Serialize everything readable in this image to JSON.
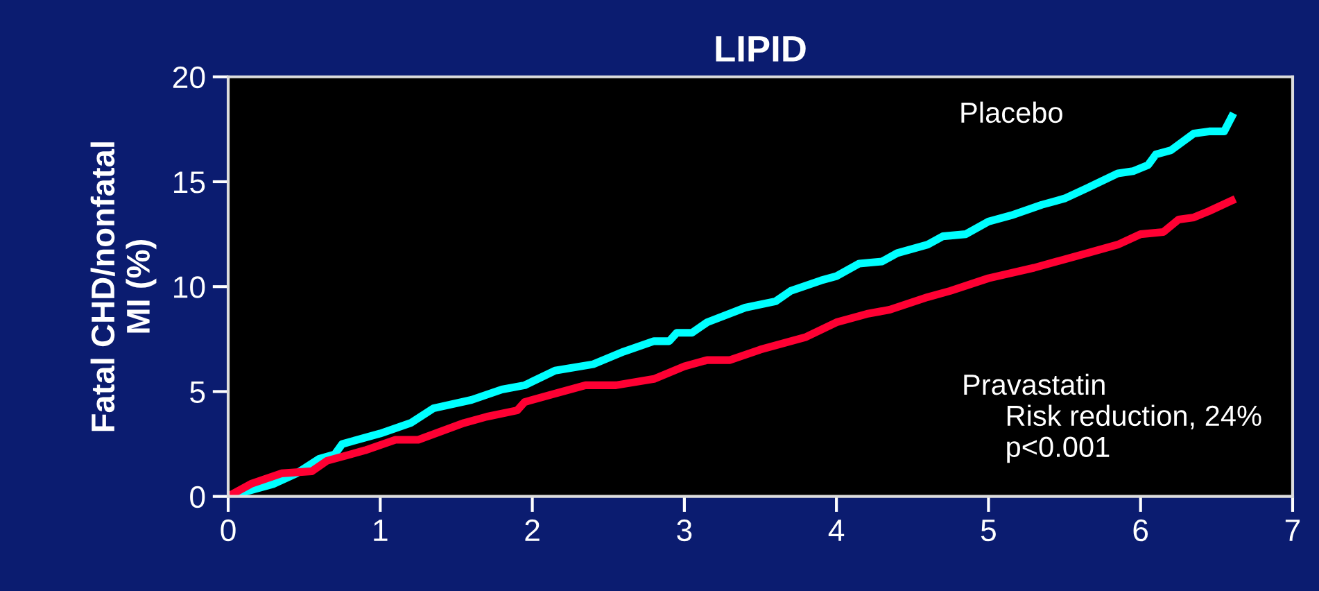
{
  "chart_data": {
    "type": "line",
    "title": "LIPID",
    "ylabel": "Fatal CHD/nonfatal\nMI (%)",
    "xlim": [
      0,
      7
    ],
    "xticks": [
      0,
      1,
      2,
      3,
      4,
      5,
      6,
      7
    ],
    "ylim": [
      0,
      20
    ],
    "yticks": [
      0,
      5,
      10,
      15,
      20
    ],
    "grid": false,
    "legend": false,
    "marker": "none",
    "line_style": "solid",
    "series": [
      {
        "name": "Placebo",
        "color": "#00ffff",
        "x": [
          0,
          0.3,
          0.45,
          0.6,
          0.7,
          0.75,
          1.0,
          1.2,
          1.35,
          1.6,
          1.8,
          1.95,
          2.15,
          2.4,
          2.6,
          2.8,
          2.9,
          2.95,
          3.05,
          3.15,
          3.4,
          3.6,
          3.7,
          3.9,
          4.0,
          4.15,
          4.3,
          4.4,
          4.6,
          4.7,
          4.85,
          5.0,
          5.15,
          5.35,
          5.5,
          5.65,
          5.85,
          5.95,
          6.05,
          6.1,
          6.2,
          6.35,
          6.45,
          6.55,
          6.6
        ],
        "values": [
          0,
          0.6,
          1.1,
          1.8,
          2.0,
          2.5,
          3.0,
          3.5,
          4.2,
          4.6,
          5.1,
          5.3,
          6.0,
          6.3,
          6.9,
          7.4,
          7.4,
          7.8,
          7.8,
          8.3,
          9.0,
          9.3,
          9.8,
          10.3,
          10.5,
          11.1,
          11.2,
          11.6,
          12.0,
          12.4,
          12.5,
          13.1,
          13.4,
          13.9,
          14.2,
          14.7,
          15.4,
          15.5,
          15.8,
          16.3,
          16.5,
          17.3,
          17.4,
          17.4,
          18.1
        ]
      },
      {
        "name": "Pravastatin",
        "color": "#ff0033",
        "x": [
          0,
          0.15,
          0.35,
          0.55,
          0.65,
          0.9,
          1.1,
          1.25,
          1.55,
          1.7,
          1.9,
          1.95,
          2.15,
          2.35,
          2.55,
          2.8,
          3.0,
          3.15,
          3.3,
          3.5,
          3.8,
          4.0,
          4.2,
          4.35,
          4.6,
          4.75,
          5.0,
          5.3,
          5.45,
          5.65,
          5.85,
          6.0,
          6.15,
          6.25,
          6.35,
          6.45,
          6.6
        ],
        "values": [
          0,
          0.6,
          1.1,
          1.2,
          1.7,
          2.2,
          2.7,
          2.7,
          3.5,
          3.8,
          4.1,
          4.5,
          4.9,
          5.3,
          5.3,
          5.6,
          6.2,
          6.5,
          6.5,
          7.0,
          7.6,
          8.3,
          8.7,
          8.9,
          9.5,
          9.8,
          10.4,
          10.9,
          11.2,
          11.6,
          12.0,
          12.5,
          12.6,
          13.2,
          13.3,
          13.6,
          14.1
        ]
      }
    ],
    "annotations": [
      "Risk reduction, 24%\np<0.001"
    ]
  }
}
